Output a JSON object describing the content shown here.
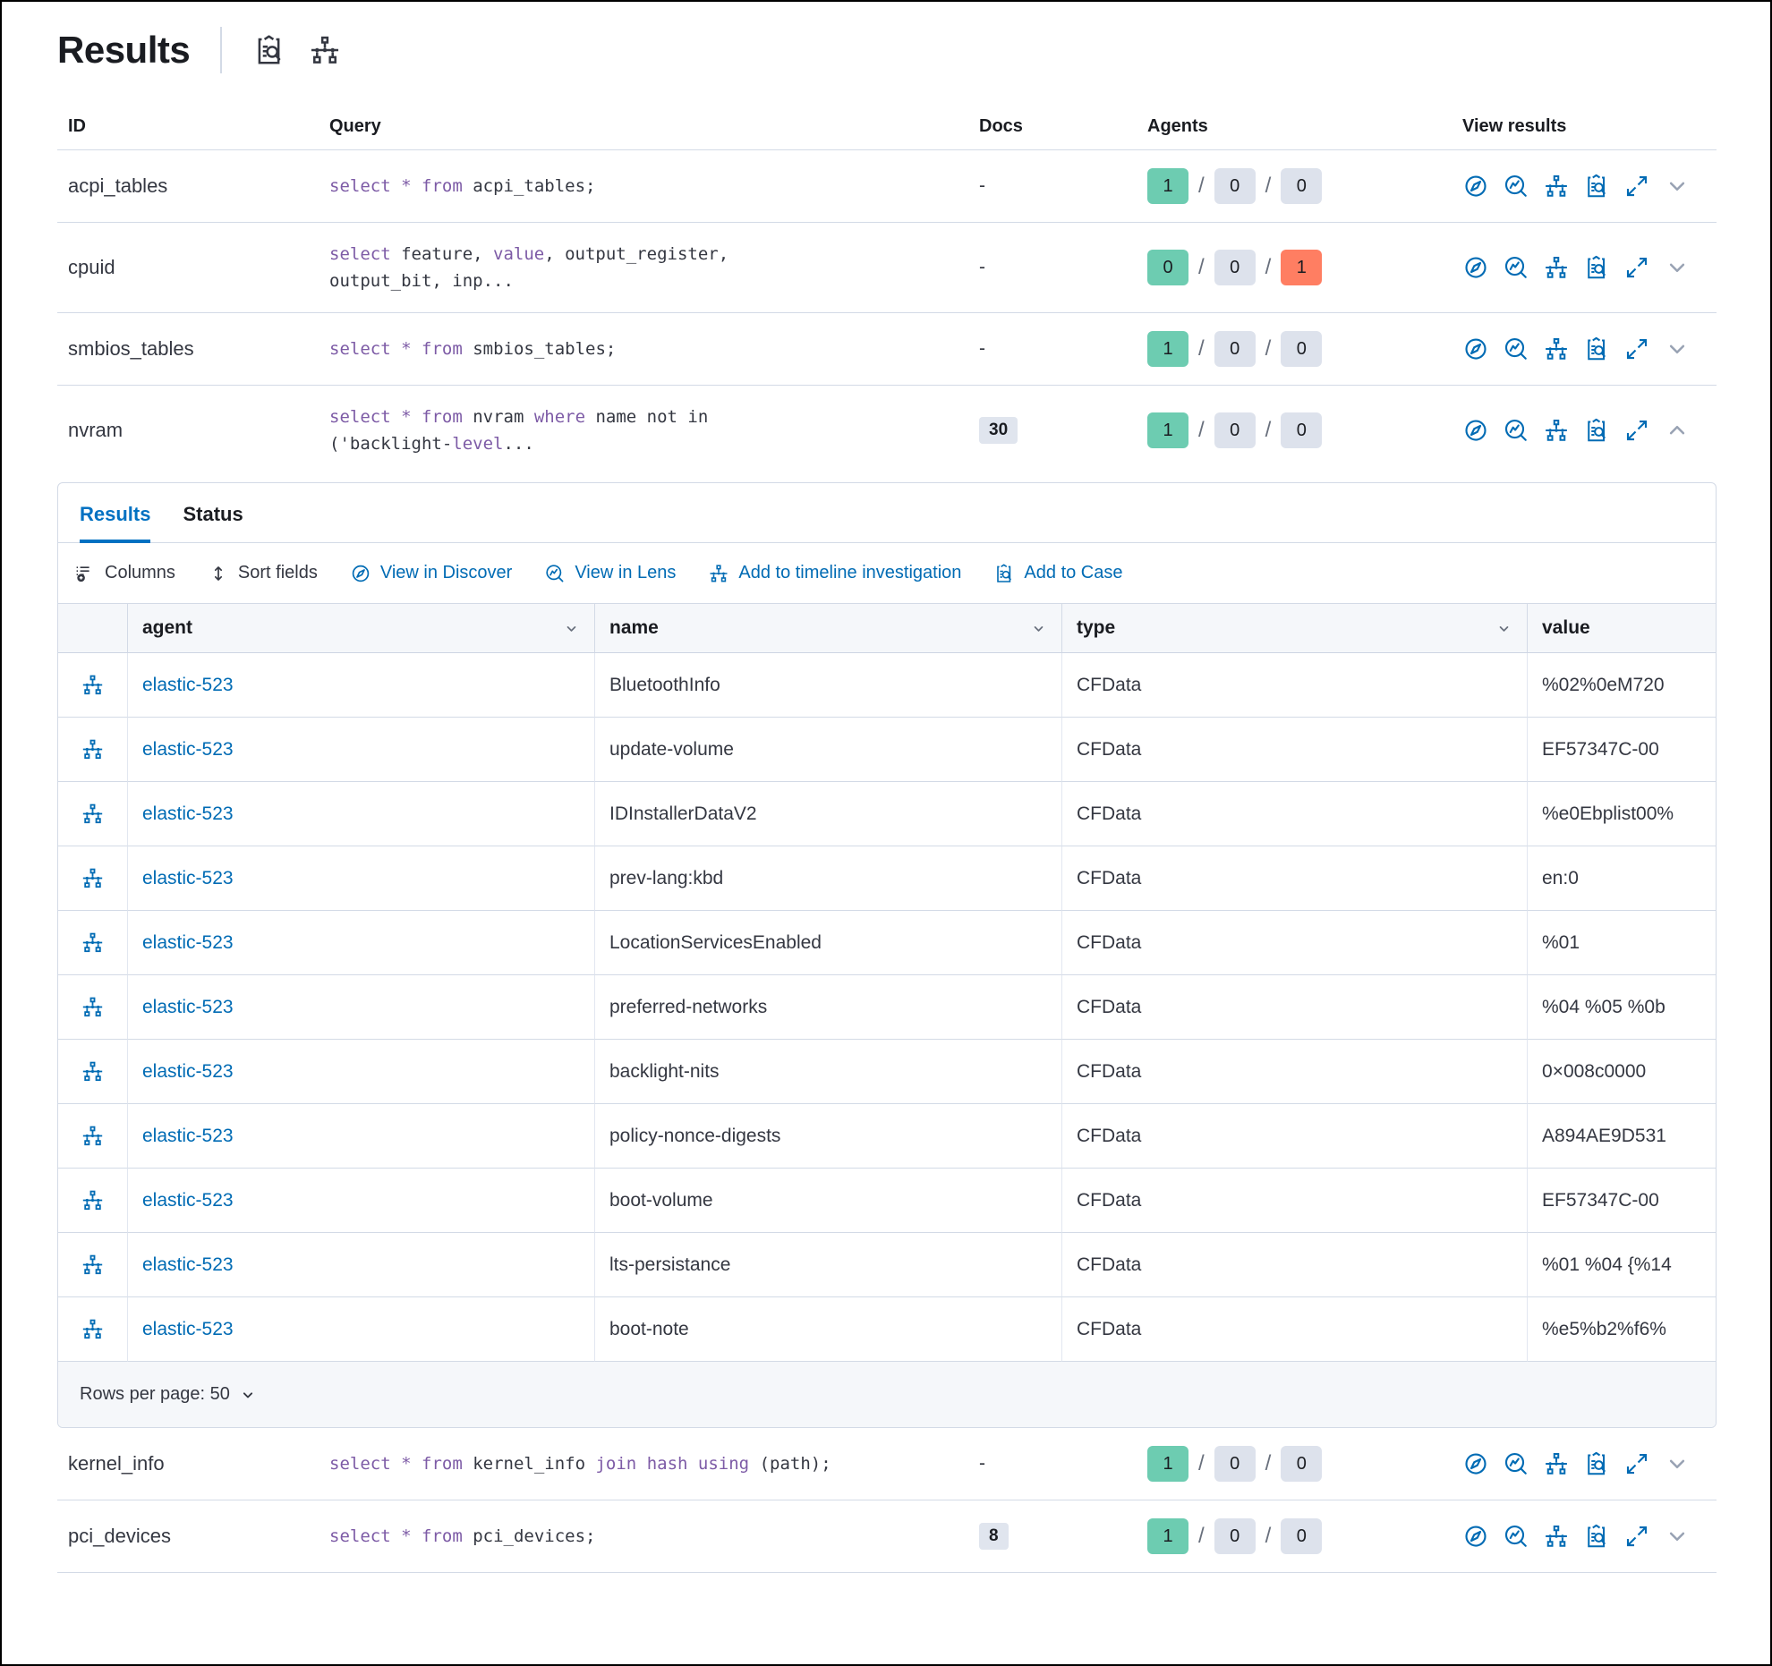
{
  "header": {
    "title": "Results",
    "icons": [
      "clipboard-search-icon",
      "timeline-icon"
    ]
  },
  "colors": {
    "link_blue": "#006bb4",
    "tab_active_blue": "#0071c2",
    "sql_keyword_purple": "#7d5ba6",
    "badge_success_green": "#6dccb1",
    "badge_neutral_gray": "#dde2ec",
    "badge_danger_red": "#ff7e62",
    "border_gray": "#d3dae6"
  },
  "table": {
    "columns": {
      "id": "ID",
      "query": "Query",
      "docs": "Docs",
      "agents": "Agents",
      "view_results": "View results"
    },
    "docs_empty": "-",
    "agents_separator": "/",
    "view_actions": [
      {
        "name": "view-in-discover",
        "icon": "discover"
      },
      {
        "name": "view-in-lens",
        "icon": "lens"
      },
      {
        "name": "add-to-timeline",
        "icon": "timeline"
      },
      {
        "name": "add-to-case",
        "icon": "inspect"
      },
      {
        "name": "open-fullscreen",
        "icon": "expand"
      }
    ]
  },
  "queries": [
    {
      "id": "acpi_tables",
      "docs": "-",
      "agents": [
        1,
        0,
        0
      ],
      "expanded": false,
      "query": [
        [
          {
            "t": "select",
            "k": 1
          },
          {
            "t": " "
          },
          {
            "t": "*",
            "k": 1
          },
          {
            "t": " "
          },
          {
            "t": "from",
            "k": 1
          },
          {
            "t": " acpi_tables;"
          }
        ]
      ]
    },
    {
      "id": "cpuid",
      "docs": "-",
      "agents": [
        0,
        0,
        1
      ],
      "expanded": false,
      "query": [
        [
          {
            "t": "select",
            "k": 1
          },
          {
            "t": " feature, "
          },
          {
            "t": "value",
            "k": 1
          },
          {
            "t": ", output_register,"
          }
        ],
        [
          {
            "t": "output_bit, inp..."
          }
        ]
      ]
    },
    {
      "id": "smbios_tables",
      "docs": "-",
      "agents": [
        1,
        0,
        0
      ],
      "expanded": false,
      "query": [
        [
          {
            "t": "select",
            "k": 1
          },
          {
            "t": " "
          },
          {
            "t": "*",
            "k": 1
          },
          {
            "t": " "
          },
          {
            "t": "from",
            "k": 1
          },
          {
            "t": " smbios_tables;"
          }
        ]
      ]
    },
    {
      "id": "nvram",
      "docs": "30",
      "agents": [
        1,
        0,
        0
      ],
      "expanded": true,
      "query": [
        [
          {
            "t": "select",
            "k": 1
          },
          {
            "t": " "
          },
          {
            "t": "*",
            "k": 1
          },
          {
            "t": " "
          },
          {
            "t": "from",
            "k": 1
          },
          {
            "t": " nvram "
          },
          {
            "t": "where",
            "k": 1
          },
          {
            "t": " name not in"
          }
        ],
        [
          {
            "t": "('backlight-"
          },
          {
            "t": "level",
            "k": 1
          },
          {
            "t": "..."
          }
        ]
      ]
    },
    {
      "id": "kernel_info",
      "docs": "-",
      "agents": [
        1,
        0,
        0
      ],
      "expanded": false,
      "query": [
        [
          {
            "t": "select",
            "k": 1
          },
          {
            "t": " "
          },
          {
            "t": "*",
            "k": 1
          },
          {
            "t": " "
          },
          {
            "t": "from",
            "k": 1
          },
          {
            "t": " kernel_info "
          },
          {
            "t": "join",
            "k": 1
          },
          {
            "t": " "
          },
          {
            "t": "hash",
            "k": 1
          },
          {
            "t": " "
          },
          {
            "t": "using",
            "k": 1
          },
          {
            "t": " (path);"
          }
        ]
      ]
    },
    {
      "id": "pci_devices",
      "docs": "8",
      "agents": [
        1,
        0,
        0
      ],
      "expanded": false,
      "query": [
        [
          {
            "t": "select",
            "k": 1
          },
          {
            "t": " "
          },
          {
            "t": "*",
            "k": 1
          },
          {
            "t": " "
          },
          {
            "t": "from",
            "k": 1
          },
          {
            "t": " pci_devices;"
          }
        ]
      ]
    }
  ],
  "panel": {
    "tabs": [
      {
        "label": "Results",
        "active": true
      },
      {
        "label": "Status",
        "active": false
      }
    ],
    "toolbar": [
      {
        "label": "Columns",
        "icon": "columns",
        "style": "dark"
      },
      {
        "label": "Sort fields",
        "icon": "sort",
        "style": "dark"
      },
      {
        "label": "View in Discover",
        "icon": "discover",
        "style": "blue"
      },
      {
        "label": "View in Lens",
        "icon": "lens",
        "style": "blue"
      },
      {
        "label": "Add to timeline investigation",
        "icon": "timeline",
        "style": "blue"
      },
      {
        "label": "Add to Case",
        "icon": "inspect",
        "style": "blue"
      }
    ],
    "grid": {
      "columns": [
        "agent",
        "name",
        "type",
        "value"
      ],
      "rows": [
        {
          "agent": "elastic-523",
          "name": "BluetoothInfo",
          "type": "CFData",
          "value": "%02%0eM720"
        },
        {
          "agent": "elastic-523",
          "name": "update-volume",
          "type": "CFData",
          "value": "EF57347C-00"
        },
        {
          "agent": "elastic-523",
          "name": "IDInstallerDataV2",
          "type": "CFData",
          "value": "%e0Ebplist00%"
        },
        {
          "agent": "elastic-523",
          "name": "prev-lang:kbd",
          "type": "CFData",
          "value": "en:0"
        },
        {
          "agent": "elastic-523",
          "name": "LocationServicesEnabled",
          "type": "CFData",
          "value": "%01"
        },
        {
          "agent": "elastic-523",
          "name": "preferred-networks",
          "type": "CFData",
          "value": "%04 %05 %0b"
        },
        {
          "agent": "elastic-523",
          "name": "backlight-nits",
          "type": "CFData",
          "value": "0×008c0000"
        },
        {
          "agent": "elastic-523",
          "name": "policy-nonce-digests",
          "type": "CFData",
          "value": "A894AE9D531"
        },
        {
          "agent": "elastic-523",
          "name": "boot-volume",
          "type": "CFData",
          "value": "EF57347C-00"
        },
        {
          "agent": "elastic-523",
          "name": "lts-persistance",
          "type": "CFData",
          "value": "%01 %04 {%14"
        },
        {
          "agent": "elastic-523",
          "name": "boot-note",
          "type": "CFData",
          "value": "%e5%b2%f6%"
        }
      ]
    },
    "footer": {
      "rows_per_page_label": "Rows per page: 50"
    }
  }
}
